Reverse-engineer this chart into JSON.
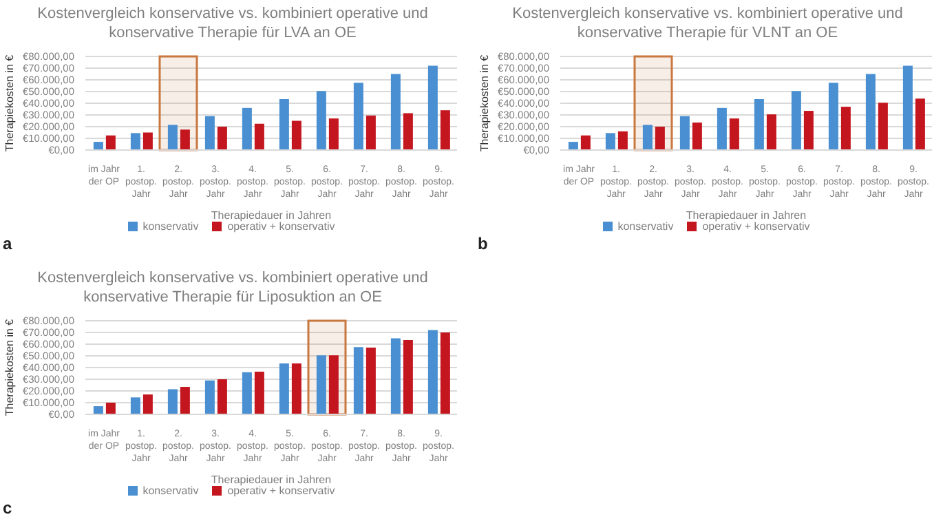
{
  "chart_data": [
    {
      "type": "bar",
      "title": "Kostenvergleich konservative vs. kombiniert operative und konservative Therapie für LVA an OE",
      "xlabel": "Therapiedauer in Jahren",
      "ylabel": "Therapiekosten in €",
      "categories": [
        "im Jahr der OP",
        "1. postop. Jahr",
        "2. postop. Jahr",
        "3. postop. Jahr",
        "4. postop. Jahr",
        "5. postop. Jahr",
        "6. postop. Jahr",
        "7. postop. Jahr",
        "8. postop. Jahr",
        "9. postop. Jahr"
      ],
      "series": [
        {
          "name": "konservativ",
          "color": "#4a8fd1",
          "values": [
            7000,
            14500,
            21500,
            29000,
            36000,
            43500,
            50500,
            57500,
            65000,
            72000
          ]
        },
        {
          "name": "operativ + konservativ",
          "color": "#c4161f",
          "values": [
            12500,
            15000,
            17500,
            20000,
            22500,
            25000,
            27000,
            29500,
            31500,
            34000
          ]
        }
      ],
      "ylim": [
        0,
        80000
      ],
      "yticks": [
        {
          "value": 0,
          "label": "€0,00"
        },
        {
          "value": 10000,
          "label": "€10.000,00"
        },
        {
          "value": 20000,
          "label": "€20.000,00"
        },
        {
          "value": 30000,
          "label": "€30.000,00"
        },
        {
          "value": 40000,
          "label": "€40.000,00"
        },
        {
          "value": 50000,
          "label": "€50.000,00"
        },
        {
          "value": 60000,
          "label": "€60.000,00"
        },
        {
          "value": 70000,
          "label": "€70.000,00"
        },
        {
          "value": 80000,
          "label": "€80.000,00"
        }
      ],
      "grid": "y",
      "legend": "bottom",
      "annotations": [
        "a"
      ],
      "bands": [
        {
          "axis": "x",
          "from": "2. postop. Jahr",
          "to": "2. postop. Jahr",
          "color": "#c8773f"
        }
      ]
    },
    {
      "type": "bar",
      "title": "Kostenvergleich konservative vs. kombiniert operative und konservative Therapie für VLNT an OE",
      "xlabel": "Therapiedauer in Jahren",
      "ylabel": "Therapiekosten in €",
      "categories": [
        "im Jahr der OP",
        "1. postop. Jahr",
        "2. postop. Jahr",
        "3. postop. Jahr",
        "4. postop. Jahr",
        "5. postop. Jahr",
        "6. postop. Jahr",
        "7. postop. Jahr",
        "8. postop. Jahr",
        "9. postop. Jahr"
      ],
      "series": [
        {
          "name": "konservativ",
          "color": "#4a8fd1",
          "values": [
            7000,
            14500,
            21500,
            29000,
            36000,
            43500,
            50500,
            57500,
            65000,
            72000
          ]
        },
        {
          "name": "operativ + konservativ",
          "color": "#c4161f",
          "values": [
            12500,
            16000,
            20000,
            23500,
            27000,
            30500,
            33500,
            37000,
            40500,
            44000
          ]
        }
      ],
      "ylim": [
        0,
        80000
      ],
      "yticks": [
        {
          "value": 0,
          "label": "€0,00"
        },
        {
          "value": 10000,
          "label": "€10.000,00"
        },
        {
          "value": 20000,
          "label": "€20.000,00"
        },
        {
          "value": 30000,
          "label": "€30.000,00"
        },
        {
          "value": 40000,
          "label": "€40.000,00"
        },
        {
          "value": 50000,
          "label": "€50.000,00"
        },
        {
          "value": 60000,
          "label": "€60.000,00"
        },
        {
          "value": 70000,
          "label": "€70.000,00"
        },
        {
          "value": 80000,
          "label": "€80.000,00"
        }
      ],
      "grid": "y",
      "legend": "bottom",
      "annotations": [
        "b"
      ],
      "bands": [
        {
          "axis": "x",
          "from": "2. postop. Jahr",
          "to": "2. postop. Jahr",
          "color": "#c8773f"
        }
      ]
    },
    {
      "type": "bar",
      "title": "Kostenvergleich konservative vs. kombiniert operative und konservative Therapie für Liposuktion an OE",
      "xlabel": "Therapiedauer in Jahren",
      "ylabel": "Therapiekosten in €",
      "categories": [
        "im Jahr der OP",
        "1. postop. Jahr",
        "2. postop. Jahr",
        "3. postop. Jahr",
        "4. postop. Jahr",
        "5. postop. Jahr",
        "6. postop. Jahr",
        "7. postop. Jahr",
        "8. postop. Jahr",
        "9. postop. Jahr"
      ],
      "series": [
        {
          "name": "konservativ",
          "color": "#4a8fd1",
          "values": [
            7000,
            14500,
            21500,
            29000,
            36000,
            43500,
            50500,
            57500,
            65000,
            72000
          ]
        },
        {
          "name": "operativ + konservativ",
          "color": "#c4161f",
          "values": [
            10000,
            17000,
            23500,
            30000,
            36500,
            43500,
            50500,
            57000,
            63500,
            70000
          ]
        }
      ],
      "ylim": [
        0,
        80000
      ],
      "yticks": [
        {
          "value": 0,
          "label": "€0,00"
        },
        {
          "value": 10000,
          "label": "€10.000,00"
        },
        {
          "value": 20000,
          "label": "€20.000,00"
        },
        {
          "value": 30000,
          "label": "€30.000,00"
        },
        {
          "value": 40000,
          "label": "€40.000,00"
        },
        {
          "value": 50000,
          "label": "€50.000,00"
        },
        {
          "value": 60000,
          "label": "€60.000,00"
        },
        {
          "value": 70000,
          "label": "€70.000,00"
        },
        {
          "value": 80000,
          "label": "€80.000,00"
        }
      ],
      "grid": "y",
      "legend": "bottom",
      "annotations": [
        "c"
      ],
      "bands": [
        {
          "axis": "x",
          "from": "6. postop. Jahr",
          "to": "6. postop. Jahr",
          "color": "#c8773f"
        }
      ]
    }
  ]
}
